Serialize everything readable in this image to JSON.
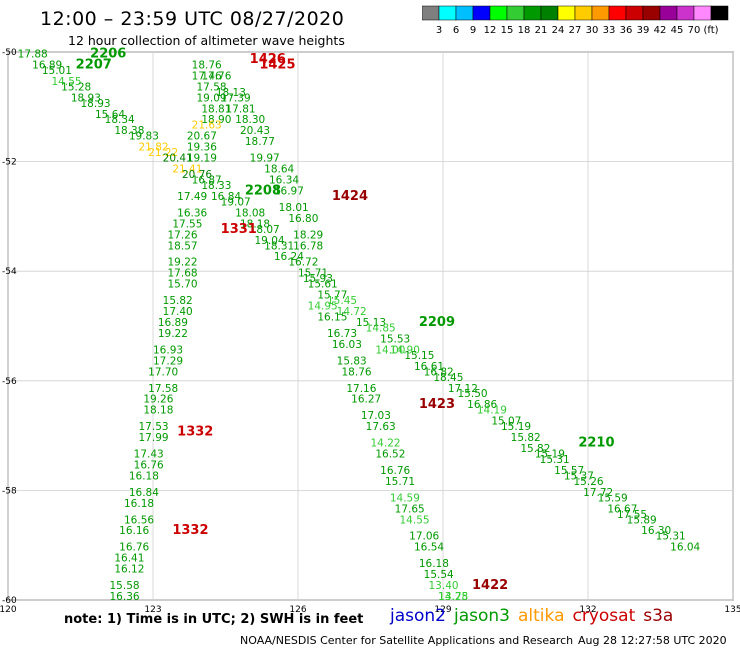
{
  "header": {
    "title": "12:00 – 23:59 UTC 08/27/2020",
    "subtitle": "12 hour collection of altimeter wave heights"
  },
  "colorbar": {
    "labels": [
      "3",
      "6",
      "9",
      "12",
      "15",
      "18",
      "21",
      "24",
      "27",
      "30",
      "33",
      "36",
      "39",
      "42",
      "45",
      "70",
      "(ft)"
    ],
    "colors": [
      "#7f7f7f",
      "#00ffff",
      "#00bfff",
      "#0000ff",
      "#00ff00",
      "#33cc33",
      "#009900",
      "#008000",
      "#ffff00",
      "#ffcc00",
      "#ff9900",
      "#ff0000",
      "#cc0000",
      "#990000",
      "#990099",
      "#cc33cc",
      "#ff88ff",
      "#000000"
    ]
  },
  "axes": {
    "lon_ticks": [
      "120",
      "123",
      "126",
      "129",
      "132",
      "135"
    ],
    "lat_ticks": [
      "-50",
      "-52",
      "-54",
      "-56",
      "-58",
      "-60"
    ],
    "lon_range": [
      120,
      135
    ],
    "lat_range": [
      -60,
      -50
    ],
    "grid": true
  },
  "satellites": [
    {
      "name": "jason2",
      "color": "#0000cc"
    },
    {
      "name": "jason3",
      "color": "#009900"
    },
    {
      "name": "altika",
      "color": "#ff9900"
    },
    {
      "name": "cryosat",
      "color": "#cc0000"
    },
    {
      "name": "s3a",
      "color": "#990000"
    }
  ],
  "tracks": [
    {
      "time": "2206",
      "lon": 121.7,
      "lat": -50.1,
      "color": "#009900"
    },
    {
      "time": "2207",
      "lon": 121.4,
      "lat": -50.3,
      "color": "#009900"
    },
    {
      "time": "2208",
      "lon": 124.9,
      "lat": -52.6,
      "color": "#009900"
    },
    {
      "time": "2209",
      "lon": 128.5,
      "lat": -55.0,
      "color": "#009900"
    },
    {
      "time": "2210",
      "lon": 131.8,
      "lat": -57.2,
      "color": "#009900"
    },
    {
      "time": "1425",
      "lon": 125.2,
      "lat": -50.3,
      "color": "#cc0000"
    },
    {
      "time": "1426",
      "lon": 125.0,
      "lat": -50.2,
      "color": "#cc0000"
    },
    {
      "time": "1331",
      "lon": 124.4,
      "lat": -53.3,
      "color": "#cc0000"
    },
    {
      "time": "1332",
      "lon": 123.5,
      "lat": -57.0,
      "color": "#cc0000"
    },
    {
      "time": "1332",
      "lon": 123.4,
      "lat": -58.8,
      "color": "#cc0000"
    },
    {
      "time": "1424",
      "lon": 126.7,
      "lat": -52.7,
      "color": "#990000"
    },
    {
      "time": "1423",
      "lon": 128.5,
      "lat": -56.5,
      "color": "#990000"
    },
    {
      "time": "1422",
      "lon": 129.6,
      "lat": -59.8,
      "color": "#990000"
    }
  ],
  "chart_data": {
    "type": "scatter",
    "title": "12:00 – 23:59 UTC 08/27/2020",
    "subtitle": "12 hour collection of altimeter wave heights",
    "xlim": [
      120,
      135
    ],
    "ylim": [
      -60,
      -50
    ],
    "points": [
      {
        "v": "17.88",
        "lon": 120.2,
        "lat": -50.1,
        "c": "#009900"
      },
      {
        "v": "16.89",
        "lon": 120.5,
        "lat": -50.3,
        "c": "#009900"
      },
      {
        "v": "15.01",
        "lon": 120.7,
        "lat": -50.4,
        "c": "#009900"
      },
      {
        "v": "14.55",
        "lon": 120.9,
        "lat": -50.6,
        "c": "#33cc33"
      },
      {
        "v": "15.28",
        "lon": 121.1,
        "lat": -50.7,
        "c": "#009900"
      },
      {
        "v": "18.93",
        "lon": 121.3,
        "lat": -50.9,
        "c": "#009900"
      },
      {
        "v": "18.93",
        "lon": 121.5,
        "lat": -51.0,
        "c": "#009900"
      },
      {
        "v": "15.64",
        "lon": 121.8,
        "lat": -51.2,
        "c": "#009900"
      },
      {
        "v": "18.34",
        "lon": 122.0,
        "lat": -51.3,
        "c": "#009900"
      },
      {
        "v": "18.38",
        "lon": 122.2,
        "lat": -51.5,
        "c": "#009900"
      },
      {
        "v": "19.83",
        "lon": 122.5,
        "lat": -51.6,
        "c": "#009900"
      },
      {
        "v": "21.82",
        "lon": 122.7,
        "lat": -51.8,
        "c": "#ffcc00"
      },
      {
        "v": "21.22",
        "lon": 122.9,
        "lat": -51.9,
        "c": "#ffcc00"
      },
      {
        "v": "20.41",
        "lon": 123.2,
        "lat": -52.0,
        "c": "#008000"
      },
      {
        "v": "21.41",
        "lon": 123.4,
        "lat": -52.2,
        "c": "#ffcc00"
      },
      {
        "v": "20.76",
        "lon": 123.6,
        "lat": -52.3,
        "c": "#008000"
      },
      {
        "v": "16.87",
        "lon": 123.8,
        "lat": -52.4,
        "c": "#009900"
      },
      {
        "v": "18.33",
        "lon": 124.0,
        "lat": -52.5,
        "c": "#009900"
      },
      {
        "v": "16.84",
        "lon": 124.2,
        "lat": -52.7,
        "c": "#009900"
      },
      {
        "v": "19.07",
        "lon": 124.4,
        "lat": -52.8,
        "c": "#009900"
      },
      {
        "v": "18.08",
        "lon": 124.7,
        "lat": -53.0,
        "c": "#009900"
      },
      {
        "v": "18.18",
        "lon": 124.8,
        "lat": -53.2,
        "c": "#009900"
      },
      {
        "v": "18.07",
        "lon": 125.0,
        "lat": -53.3,
        "c": "#009900"
      },
      {
        "v": "19.04",
        "lon": 125.1,
        "lat": -53.5,
        "c": "#009900"
      },
      {
        "v": "18.31",
        "lon": 125.3,
        "lat": -53.6,
        "c": "#009900"
      },
      {
        "v": "16.24",
        "lon": 125.5,
        "lat": -53.8,
        "c": "#009900"
      },
      {
        "v": "16.72",
        "lon": 125.8,
        "lat": -53.9,
        "c": "#009900"
      },
      {
        "v": "15.71",
        "lon": 126.0,
        "lat": -54.1,
        "c": "#009900"
      },
      {
        "v": "15.61",
        "lon": 126.2,
        "lat": -54.3,
        "c": "#009900"
      },
      {
        "v": "15.77",
        "lon": 126.4,
        "lat": -54.5,
        "c": "#009900"
      },
      {
        "v": "15.45",
        "lon": 126.6,
        "lat": -54.6,
        "c": "#33cc33"
      },
      {
        "v": "14.72",
        "lon": 126.8,
        "lat": -54.8,
        "c": "#33cc33"
      },
      {
        "v": "15.13",
        "lon": 127.2,
        "lat": -55.0,
        "c": "#009900"
      },
      {
        "v": "14.85",
        "lon": 127.4,
        "lat": -55.1,
        "c": "#33cc33"
      },
      {
        "v": "15.53",
        "lon": 127.7,
        "lat": -55.3,
        "c": "#009900"
      },
      {
        "v": "14.90",
        "lon": 127.9,
        "lat": -55.5,
        "c": "#33cc33"
      },
      {
        "v": "15.15",
        "lon": 128.2,
        "lat": -55.6,
        "c": "#009900"
      },
      {
        "v": "16.61",
        "lon": 128.4,
        "lat": -55.8,
        "c": "#009900"
      },
      {
        "v": "16.82",
        "lon": 128.6,
        "lat": -55.9,
        "c": "#009900"
      },
      {
        "v": "18.45",
        "lon": 128.8,
        "lat": -56.0,
        "c": "#009900"
      },
      {
        "v": "17.12",
        "lon": 129.1,
        "lat": -56.2,
        "c": "#009900"
      },
      {
        "v": "15.50",
        "lon": 129.3,
        "lat": -56.3,
        "c": "#009900"
      },
      {
        "v": "16.86",
        "lon": 129.5,
        "lat": -56.5,
        "c": "#009900"
      },
      {
        "v": "14.19",
        "lon": 129.7,
        "lat": -56.6,
        "c": "#33cc33"
      },
      {
        "v": "15.07",
        "lon": 130.0,
        "lat": -56.8,
        "c": "#009900"
      },
      {
        "v": "15.19",
        "lon": 130.2,
        "lat": -56.9,
        "c": "#009900"
      },
      {
        "v": "15.82",
        "lon": 130.4,
        "lat": -57.1,
        "c": "#009900"
      },
      {
        "v": "15.82",
        "lon": 130.6,
        "lat": -57.3,
        "c": "#009900"
      },
      {
        "v": "15.19",
        "lon": 130.9,
        "lat": -57.4,
        "c": "#009900"
      },
      {
        "v": "15.31",
        "lon": 131.0,
        "lat": -57.5,
        "c": "#009900"
      },
      {
        "v": "15.57",
        "lon": 131.3,
        "lat": -57.7,
        "c": "#009900"
      },
      {
        "v": "15.37",
        "lon": 131.5,
        "lat": -57.8,
        "c": "#009900"
      },
      {
        "v": "15.26",
        "lon": 131.7,
        "lat": -57.9,
        "c": "#009900"
      },
      {
        "v": "17.72",
        "lon": 131.9,
        "lat": -58.1,
        "c": "#009900"
      },
      {
        "v": "15.59",
        "lon": 132.2,
        "lat": -58.2,
        "c": "#009900"
      },
      {
        "v": "16.67",
        "lon": 132.4,
        "lat": -58.4,
        "c": "#009900"
      },
      {
        "v": "17.55",
        "lon": 132.6,
        "lat": -58.5,
        "c": "#009900"
      },
      {
        "v": "15.89",
        "lon": 132.8,
        "lat": -58.6,
        "c": "#009900"
      },
      {
        "v": "16.30",
        "lon": 133.1,
        "lat": -58.8,
        "c": "#009900"
      },
      {
        "v": "15.31",
        "lon": 133.4,
        "lat": -58.9,
        "c": "#009900"
      },
      {
        "v": "16.04",
        "lon": 133.7,
        "lat": -59.1,
        "c": "#009900"
      },
      {
        "v": "18.76",
        "lon": 123.8,
        "lat": -50.3,
        "c": "#009900"
      },
      {
        "v": "17.46",
        "lon": 123.8,
        "lat": -50.5,
        "c": "#009900"
      },
      {
        "v": "17.58",
        "lon": 123.9,
        "lat": -50.7,
        "c": "#009900"
      },
      {
        "v": "19.09",
        "lon": 123.9,
        "lat": -50.9,
        "c": "#009900"
      },
      {
        "v": "18.81",
        "lon": 124.0,
        "lat": -51.1,
        "c": "#009900"
      },
      {
        "v": "18.90",
        "lon": 124.0,
        "lat": -51.3,
        "c": "#009900"
      },
      {
        "v": "21.63",
        "lon": 123.8,
        "lat": -51.4,
        "c": "#ffcc00"
      },
      {
        "v": "20.67",
        "lon": 123.7,
        "lat": -51.6,
        "c": "#009900"
      },
      {
        "v": "19.36",
        "lon": 123.7,
        "lat": -51.8,
        "c": "#009900"
      },
      {
        "v": "19.19",
        "lon": 123.7,
        "lat": -52.0,
        "c": "#009900"
      },
      {
        "v": "17.49",
        "lon": 123.5,
        "lat": -52.7,
        "c": "#009900"
      },
      {
        "v": "16.36",
        "lon": 123.5,
        "lat": -53.0,
        "c": "#009900"
      },
      {
        "v": "17.55",
        "lon": 123.4,
        "lat": -53.2,
        "c": "#009900"
      },
      {
        "v": "17.26",
        "lon": 123.3,
        "lat": -53.4,
        "c": "#009900"
      },
      {
        "v": "18.57",
        "lon": 123.3,
        "lat": -53.6,
        "c": "#009900"
      },
      {
        "v": "19.22",
        "lon": 123.3,
        "lat": -53.9,
        "c": "#009900"
      },
      {
        "v": "17.68",
        "lon": 123.3,
        "lat": -54.1,
        "c": "#009900"
      },
      {
        "v": "15.70",
        "lon": 123.3,
        "lat": -54.3,
        "c": "#009900"
      },
      {
        "v": "15.82",
        "lon": 123.2,
        "lat": -54.6,
        "c": "#009900"
      },
      {
        "v": "17.40",
        "lon": 123.2,
        "lat": -54.8,
        "c": "#009900"
      },
      {
        "v": "16.89",
        "lon": 123.1,
        "lat": -55.0,
        "c": "#009900"
      },
      {
        "v": "19.22",
        "lon": 123.1,
        "lat": -55.2,
        "c": "#009900"
      },
      {
        "v": "16.93",
        "lon": 123.0,
        "lat": -55.5,
        "c": "#009900"
      },
      {
        "v": "17.29",
        "lon": 123.0,
        "lat": -55.7,
        "c": "#009900"
      },
      {
        "v": "17.70",
        "lon": 122.9,
        "lat": -55.9,
        "c": "#009900"
      },
      {
        "v": "17.58",
        "lon": 122.9,
        "lat": -56.2,
        "c": "#009900"
      },
      {
        "v": "19.26",
        "lon": 122.8,
        "lat": -56.4,
        "c": "#009900"
      },
      {
        "v": "18.18",
        "lon": 122.8,
        "lat": -56.6,
        "c": "#009900"
      },
      {
        "v": "17.53",
        "lon": 122.7,
        "lat": -56.9,
        "c": "#009900"
      },
      {
        "v": "17.99",
        "lon": 122.7,
        "lat": -57.1,
        "c": "#009900"
      },
      {
        "v": "17.43",
        "lon": 122.6,
        "lat": -57.4,
        "c": "#009900"
      },
      {
        "v": "16.76",
        "lon": 122.6,
        "lat": -57.6,
        "c": "#009900"
      },
      {
        "v": "16.18",
        "lon": 122.5,
        "lat": -57.8,
        "c": "#009900"
      },
      {
        "v": "16.84",
        "lon": 122.5,
        "lat": -58.1,
        "c": "#009900"
      },
      {
        "v": "16.18",
        "lon": 122.4,
        "lat": -58.3,
        "c": "#009900"
      },
      {
        "v": "16.56",
        "lon": 122.4,
        "lat": -58.6,
        "c": "#009900"
      },
      {
        "v": "16.16",
        "lon": 122.3,
        "lat": -58.8,
        "c": "#009900"
      },
      {
        "v": "16.76",
        "lon": 122.3,
        "lat": -59.1,
        "c": "#009900"
      },
      {
        "v": "16.41",
        "lon": 122.2,
        "lat": -59.3,
        "c": "#009900"
      },
      {
        "v": "16.12",
        "lon": 122.2,
        "lat": -59.5,
        "c": "#009900"
      },
      {
        "v": "15.58",
        "lon": 122.1,
        "lat": -59.8,
        "c": "#009900"
      },
      {
        "v": "16.36",
        "lon": 122.1,
        "lat": -60.0,
        "c": "#009900"
      },
      {
        "v": "17.76",
        "lon": 124.0,
        "lat": -50.5,
        "c": "#009900"
      },
      {
        "v": "18.13",
        "lon": 124.3,
        "lat": -50.8,
        "c": "#009900"
      },
      {
        "v": "17.39",
        "lon": 124.4,
        "lat": -50.9,
        "c": "#009900"
      },
      {
        "v": "17.81",
        "lon": 124.5,
        "lat": -51.1,
        "c": "#009900"
      },
      {
        "v": "18.30",
        "lon": 124.7,
        "lat": -51.3,
        "c": "#009900"
      },
      {
        "v": "20.43",
        "lon": 124.8,
        "lat": -51.5,
        "c": "#009900"
      },
      {
        "v": "18.77",
        "lon": 124.9,
        "lat": -51.7,
        "c": "#009900"
      },
      {
        "v": "19.97",
        "lon": 125.0,
        "lat": -52.0,
        "c": "#009900"
      },
      {
        "v": "18.64",
        "lon": 125.3,
        "lat": -52.2,
        "c": "#009900"
      },
      {
        "v": "16.34",
        "lon": 125.4,
        "lat": -52.4,
        "c": "#009900"
      },
      {
        "v": "16.97",
        "lon": 125.5,
        "lat": -52.6,
        "c": "#009900"
      },
      {
        "v": "18.01",
        "lon": 125.6,
        "lat": -52.9,
        "c": "#009900"
      },
      {
        "v": "16.80",
        "lon": 125.8,
        "lat": -53.1,
        "c": "#009900"
      },
      {
        "v": "18.29",
        "lon": 125.9,
        "lat": -53.4,
        "c": "#009900"
      },
      {
        "v": "16.78",
        "lon": 125.9,
        "lat": -53.6,
        "c": "#009900"
      },
      {
        "v": "15.93",
        "lon": 126.1,
        "lat": -54.2,
        "c": "#009900"
      },
      {
        "v": "14.95",
        "lon": 126.2,
        "lat": -54.7,
        "c": "#33cc33"
      },
      {
        "v": "16.15",
        "lon": 126.4,
        "lat": -54.9,
        "c": "#009900"
      },
      {
        "v": "16.73",
        "lon": 126.6,
        "lat": -55.2,
        "c": "#009900"
      },
      {
        "v": "16.03",
        "lon": 126.7,
        "lat": -55.4,
        "c": "#009900"
      },
      {
        "v": "15.83",
        "lon": 126.8,
        "lat": -55.7,
        "c": "#009900"
      },
      {
        "v": "18.76",
        "lon": 126.9,
        "lat": -55.9,
        "c": "#009900"
      },
      {
        "v": "17.16",
        "lon": 127.0,
        "lat": -56.2,
        "c": "#009900"
      },
      {
        "v": "16.27",
        "lon": 127.1,
        "lat": -56.4,
        "c": "#009900"
      },
      {
        "v": "17.03",
        "lon": 127.3,
        "lat": -56.7,
        "c": "#009900"
      },
      {
        "v": "17.63",
        "lon": 127.4,
        "lat": -56.9,
        "c": "#009900"
      },
      {
        "v": "14.22",
        "lon": 127.5,
        "lat": -57.2,
        "c": "#33cc33"
      },
      {
        "v": "16.52",
        "lon": 127.6,
        "lat": -57.4,
        "c": "#009900"
      },
      {
        "v": "16.76",
        "lon": 127.7,
        "lat": -57.7,
        "c": "#009900"
      },
      {
        "v": "15.71",
        "lon": 127.8,
        "lat": -57.9,
        "c": "#009900"
      },
      {
        "v": "14.59",
        "lon": 127.9,
        "lat": -58.2,
        "c": "#33cc33"
      },
      {
        "v": "17.65",
        "lon": 128.0,
        "lat": -58.4,
        "c": "#009900"
      },
      {
        "v": "14.55",
        "lon": 128.1,
        "lat": -58.6,
        "c": "#33cc33"
      },
      {
        "v": "17.06",
        "lon": 128.3,
        "lat": -58.9,
        "c": "#009900"
      },
      {
        "v": "16.54",
        "lon": 128.4,
        "lat": -59.1,
        "c": "#009900"
      },
      {
        "v": "16.18",
        "lon": 128.5,
        "lat": -59.4,
        "c": "#009900"
      },
      {
        "v": "15.54",
        "lon": 128.6,
        "lat": -59.6,
        "c": "#009900"
      },
      {
        "v": "13.40",
        "lon": 128.7,
        "lat": -59.8,
        "c": "#33cc33"
      },
      {
        "v": "13.78",
        "lon": 128.9,
        "lat": -60.0,
        "c": "#33cc33"
      },
      {
        "v": "15.82",
        "lon": 129.0,
        "lat": -60.3,
        "c": "#009900"
      },
      {
        "v": "14.00",
        "lon": 127.6,
        "lat": -55.5,
        "c": "#33cc33"
      },
      {
        "v": "14.25",
        "lon": 128.9,
        "lat": -60.0,
        "c": "#33cc33"
      }
    ]
  },
  "footer": {
    "note": "note:  1) Time is in UTC;  2) SWH is in feet",
    "credit": "NOAA/NESDIS Center for Satellite Applications and Research",
    "timestamp": "Aug 28 12:27:58 UTC 2020"
  }
}
